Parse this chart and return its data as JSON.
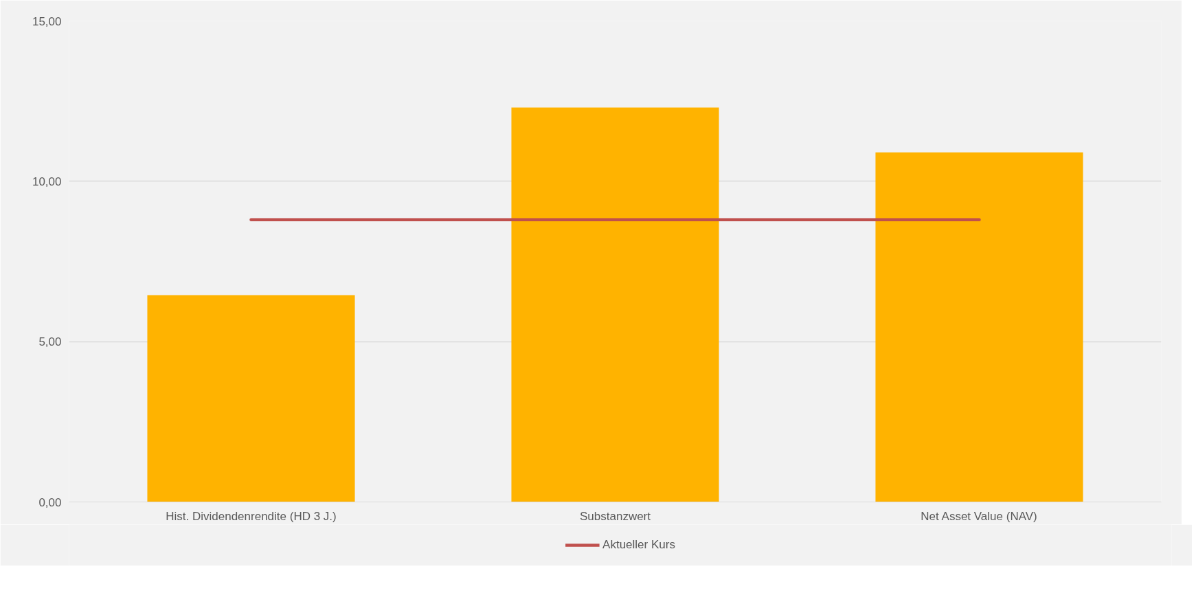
{
  "chart_data": {
    "type": "bar",
    "categories": [
      "Hist. Dividendenrendite (HD 3 J.)",
      "Substanzwert",
      "Net Asset Value (NAV)"
    ],
    "series": [
      {
        "type": "bar",
        "color": "#ffb300",
        "values": [
          6.45,
          12.3,
          10.9
        ]
      },
      {
        "type": "line",
        "name": "Aktueller Kurs",
        "color": "#c0504d",
        "values": [
          8.8,
          8.8,
          8.8
        ]
      }
    ],
    "ylim": [
      0,
      15
    ],
    "yticks": [
      {
        "value": 0,
        "label": "0,00"
      },
      {
        "value": 5,
        "label": "5,00"
      },
      {
        "value": 10,
        "label": "10,00"
      },
      {
        "value": 15,
        "label": "15,00"
      }
    ],
    "grid": "y",
    "legend": "bottom",
    "marker": "none",
    "line_style": "solid"
  }
}
